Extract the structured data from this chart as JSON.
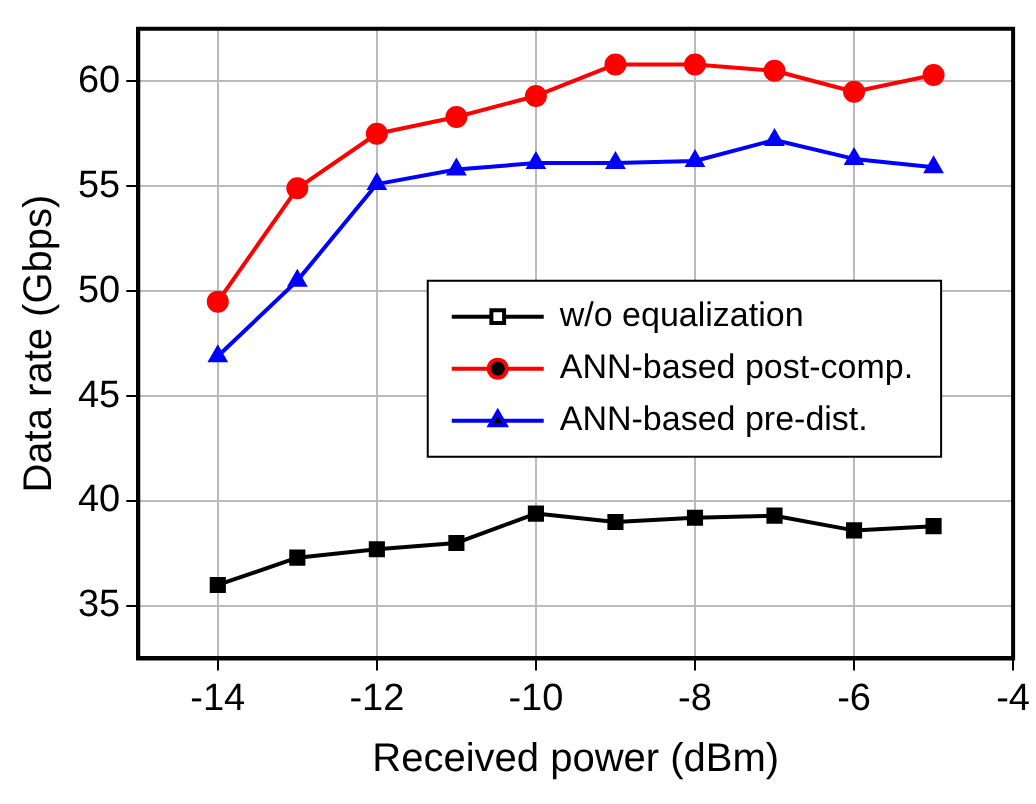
{
  "chart_data": {
    "type": "line",
    "xlabel": "Received power (dBm)",
    "ylabel": "Data rate (Gbps)",
    "x": [
      -14,
      -13,
      -12,
      -11,
      -10,
      -9,
      -8,
      -7,
      -6,
      -5
    ],
    "series": [
      {
        "name": "w/o equalization",
        "color": "#000000",
        "marker": "square",
        "values": [
          36.0,
          37.3,
          37.7,
          38.0,
          39.4,
          39.0,
          39.2,
          39.3,
          38.6,
          38.8
        ]
      },
      {
        "name": "ANN-based post-comp.",
        "color": "#ff0000",
        "marker": "circle",
        "values": [
          49.5,
          54.9,
          57.5,
          58.3,
          59.3,
          60.8,
          60.8,
          60.5,
          59.5,
          60.3
        ]
      },
      {
        "name": "ANN-based pre-dist.",
        "color": "#0000ff",
        "marker": "triangle",
        "values": [
          46.9,
          50.5,
          55.1,
          55.8,
          56.1,
          56.1,
          56.2,
          57.2,
          56.3,
          55.9
        ]
      }
    ],
    "xlim": [
      -15,
      -4
    ],
    "xticks": [
      -14,
      -12,
      -10,
      -8,
      -6,
      -4
    ],
    "ylim": [
      32.5,
      62.5
    ],
    "yticks": [
      35,
      40,
      45,
      50,
      55,
      60
    ],
    "grid": true,
    "legend": "center right",
    "line_style": "solid"
  }
}
